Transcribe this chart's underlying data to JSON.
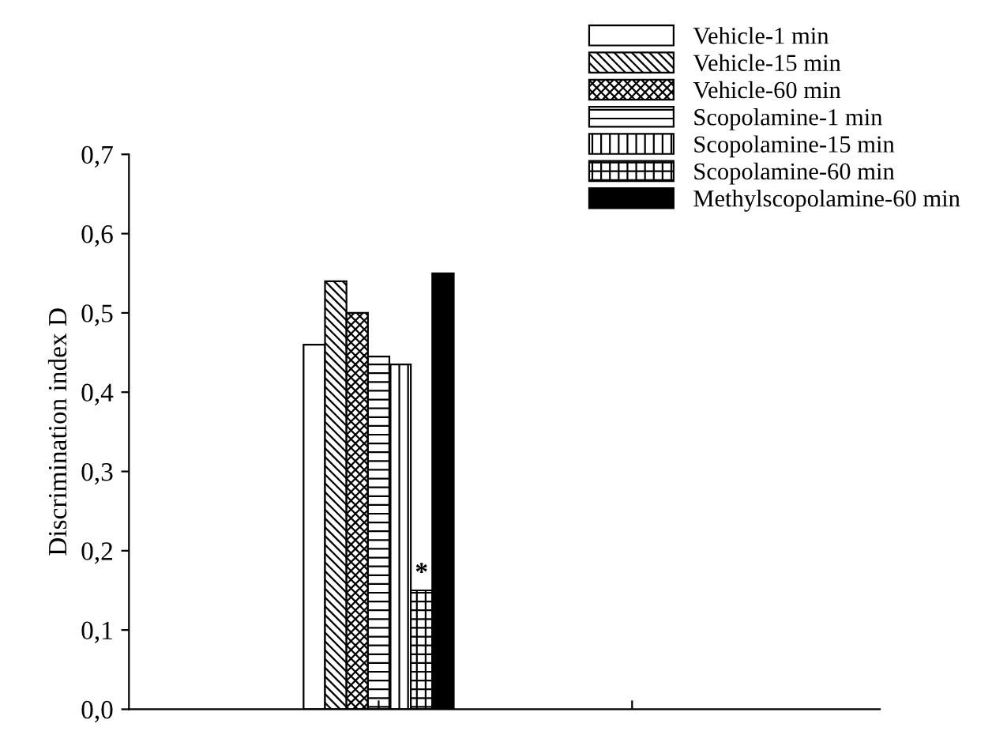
{
  "chart_data": {
    "type": "bar",
    "ylabel": "Discrimination index D",
    "categories": [
      null
    ],
    "series": [
      {
        "name": "Vehicle-1 min",
        "color": "#ffffff",
        "values": [
          0.46
        ]
      },
      {
        "name": "Vehicle-15 min",
        "color": "#000000",
        "values": [
          0.54
        ]
      },
      {
        "name": "Vehicle-60 min",
        "color": "#000000",
        "values": [
          0.5
        ]
      },
      {
        "name": "Scopolamine-1 min",
        "color": "#000000",
        "values": [
          0.445
        ]
      },
      {
        "name": "Scopolamine-15 min",
        "color": "#000000",
        "values": [
          0.435
        ]
      },
      {
        "name": "Scopolamine-60 min",
        "color": "#000000",
        "values": [
          0.15
        ]
      },
      {
        "name": "Methylscopolamine-60 min",
        "color": "#000000",
        "values": [
          0.55
        ]
      }
    ],
    "annotations": [
      {
        "text": "*",
        "y": 0.15
      }
    ],
    "ylim": [
      0,
      0.7
    ],
    "yticks": [
      {
        "value": 0,
        "label": "0,0"
      },
      {
        "value": 0.1,
        "label": "0,1"
      },
      {
        "value": 0.2,
        "label": "0,2"
      },
      {
        "value": 0.3,
        "label": "0,3"
      },
      {
        "value": 0.4,
        "label": "0,4"
      },
      {
        "value": 0.5,
        "label": "0,5"
      },
      {
        "value": 0.6,
        "label": "0,6"
      },
      {
        "value": 0.7,
        "label": "0,7"
      }
    ],
    "grid": false,
    "legend": "top right"
  }
}
